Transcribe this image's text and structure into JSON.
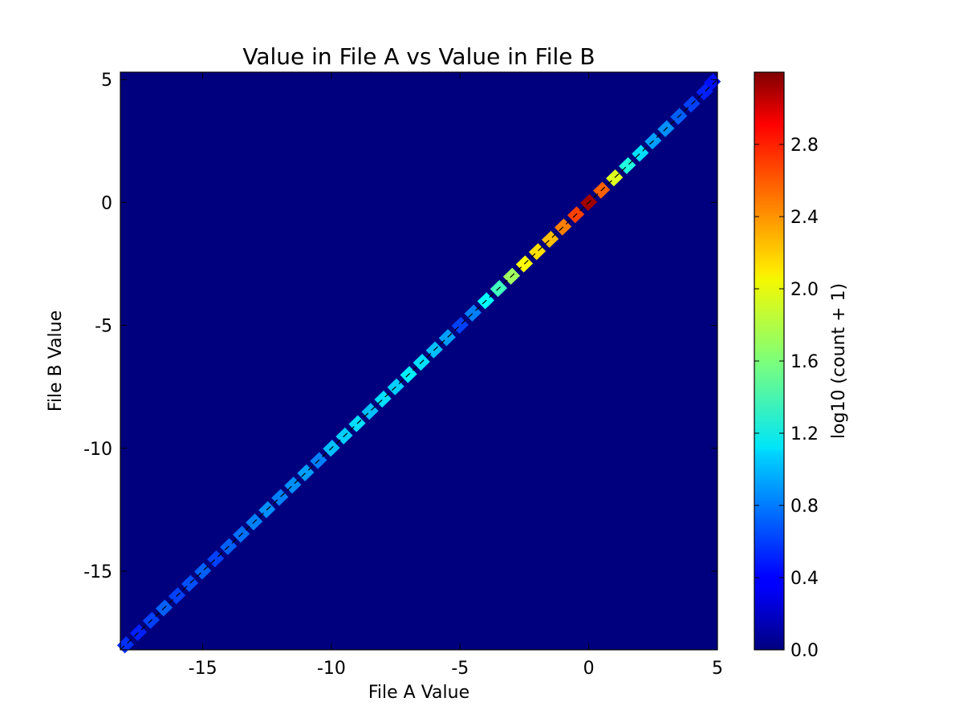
{
  "chart_data": {
    "type": "heatmap",
    "title": "Value in File A vs Value in File B",
    "xlabel": "File A Value",
    "ylabel": "File B Value",
    "xlim": [
      -18.2,
      5.0
    ],
    "ylim": [
      -18.2,
      5.3
    ],
    "x_ticks": [
      -15,
      -10,
      -5,
      0,
      5
    ],
    "y_ticks": [
      5,
      0,
      -5,
      -10,
      -15
    ],
    "colorbar": {
      "label": "log10 (count + 1)",
      "range": [
        0.0,
        3.2
      ],
      "ticks": [
        0.0,
        0.4,
        0.8,
        1.2,
        1.6,
        2.0,
        2.4,
        2.8
      ],
      "colormap": "jet"
    },
    "background_color": "#00007f",
    "reference_line": {
      "from": [
        -18.2,
        -18.2
      ],
      "to": [
        5.0,
        5.0
      ],
      "style": "dashed",
      "color": "#000000"
    },
    "cells": [
      {
        "x": -18.0,
        "y": -18.0,
        "value": 0.55
      },
      {
        "x": -17.5,
        "y": -17.5,
        "value": 0.5
      },
      {
        "x": -17.0,
        "y": -17.0,
        "value": 0.6
      },
      {
        "x": -16.5,
        "y": -16.5,
        "value": 0.7
      },
      {
        "x": -16.0,
        "y": -16.0,
        "value": 0.6
      },
      {
        "x": -15.5,
        "y": -15.5,
        "value": 0.65
      },
      {
        "x": -15.0,
        "y": -15.0,
        "value": 0.7
      },
      {
        "x": -14.5,
        "y": -14.5,
        "value": 0.6
      },
      {
        "x": -14.0,
        "y": -14.0,
        "value": 0.7
      },
      {
        "x": -13.5,
        "y": -13.5,
        "value": 0.75
      },
      {
        "x": -13.0,
        "y": -13.0,
        "value": 0.8
      },
      {
        "x": -12.5,
        "y": -12.5,
        "value": 0.85
      },
      {
        "x": -12.0,
        "y": -12.0,
        "value": 0.8
      },
      {
        "x": -11.5,
        "y": -11.5,
        "value": 0.85
      },
      {
        "x": -11.0,
        "y": -11.0,
        "value": 0.9
      },
      {
        "x": -10.5,
        "y": -10.5,
        "value": 0.8
      },
      {
        "x": -10.0,
        "y": -10.0,
        "value": 1.0
      },
      {
        "x": -9.5,
        "y": -9.5,
        "value": 1.05
      },
      {
        "x": -9.0,
        "y": -9.0,
        "value": 1.1
      },
      {
        "x": -8.5,
        "y": -8.5,
        "value": 1.0
      },
      {
        "x": -8.0,
        "y": -8.0,
        "value": 1.1
      },
      {
        "x": -7.5,
        "y": -7.5,
        "value": 1.05
      },
      {
        "x": -7.0,
        "y": -7.0,
        "value": 1.15
      },
      {
        "x": -6.5,
        "y": -6.5,
        "value": 1.1
      },
      {
        "x": -6.0,
        "y": -6.0,
        "value": 1.0
      },
      {
        "x": -5.5,
        "y": -5.5,
        "value": 0.9
      },
      {
        "x": -5.0,
        "y": -5.0,
        "value": 0.6
      },
      {
        "x": -4.5,
        "y": -4.5,
        "value": 0.8
      },
      {
        "x": -4.0,
        "y": -4.0,
        "value": 1.2
      },
      {
        "x": -3.5,
        "y": -3.5,
        "value": 1.4
      },
      {
        "x": -3.0,
        "y": -3.0,
        "value": 1.7
      },
      {
        "x": -2.5,
        "y": -2.5,
        "value": 2.0
      },
      {
        "x": -2.0,
        "y": -2.0,
        "value": 2.1
      },
      {
        "x": -1.5,
        "y": -1.5,
        "value": 2.2
      },
      {
        "x": -1.0,
        "y": -1.0,
        "value": 2.4
      },
      {
        "x": -0.5,
        "y": -0.5,
        "value": 2.6
      },
      {
        "x": 0.0,
        "y": 0.0,
        "value": 3.1
      },
      {
        "x": 0.5,
        "y": 0.5,
        "value": 2.5
      },
      {
        "x": 1.0,
        "y": 1.0,
        "value": 1.9
      },
      {
        "x": 1.5,
        "y": 1.5,
        "value": 1.3
      },
      {
        "x": 2.0,
        "y": 2.0,
        "value": 1.1
      },
      {
        "x": 2.5,
        "y": 2.5,
        "value": 0.9
      },
      {
        "x": 3.0,
        "y": 3.0,
        "value": 0.85
      },
      {
        "x": 3.5,
        "y": 3.5,
        "value": 0.7
      },
      {
        "x": 4.0,
        "y": 4.0,
        "value": 0.6
      },
      {
        "x": 4.5,
        "y": 4.5,
        "value": 0.5
      },
      {
        "x": 4.8,
        "y": 4.9,
        "value": 0.45
      }
    ]
  }
}
